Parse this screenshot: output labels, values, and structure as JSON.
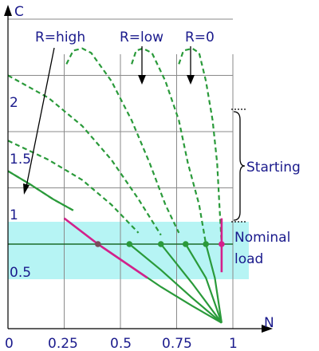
{
  "chart_data": {
    "type": "line",
    "xlabel": "N",
    "ylabel": "C",
    "x_ticks": [
      "0",
      "0.25",
      "0.5",
      "0.75",
      "1"
    ],
    "y_ticks": [
      "0.5",
      "1",
      "1.5",
      "2"
    ],
    "xlim": [
      0,
      1.0
    ],
    "ylim": [
      -0.25,
      2.5
    ],
    "grid": true,
    "annotations": {
      "r_high": "R=high",
      "r_low": "R=low",
      "r_zero": "R=0",
      "starting": "Starting",
      "nominal_load_1": "Nominal",
      "nominal_load_2": "load"
    },
    "nominal_band": [
      0.25,
      0.75
    ],
    "nominal_load_level": 0.5,
    "starting_range": [
      1.0,
      2.0
    ],
    "operating_points_N": [
      0.4,
      0.54,
      0.68,
      0.79,
      0.88,
      0.95
    ],
    "series": [
      {
        "upper": [
          [
            0.0,
            1.42
          ],
          [
            0.18,
            1.25
          ],
          [
            0.33,
            1.07
          ],
          [
            0.46,
            0.85
          ],
          [
            0.58,
            0.6
          ],
          [
            0.68,
            0.37
          ],
          [
            0.77,
            0.12
          ],
          [
            0.85,
            -0.1
          ],
          [
            0.95,
            -0.2
          ]
        ],
        "lower": [
          [
            0.25,
            0.73
          ],
          [
            0.4,
            0.5
          ],
          [
            0.54,
            0.31
          ],
          [
            0.68,
            0.12
          ],
          [
            0.82,
            -0.05
          ],
          [
            0.95,
            -0.2
          ]
        ]
      },
      {
        "upper": [
          [
            0.0,
            2.0
          ],
          [
            0.18,
            1.8
          ],
          [
            0.33,
            1.55
          ],
          [
            0.46,
            1.25
          ],
          [
            0.58,
            0.9
          ],
          [
            0.68,
            0.58
          ],
          [
            0.77,
            0.27
          ],
          [
            0.85,
            0.02
          ],
          [
            0.95,
            -0.2
          ]
        ],
        "lower": [
          [
            0.54,
            0.5
          ],
          [
            0.68,
            0.27
          ],
          [
            0.82,
            0.02
          ],
          [
            0.95,
            -0.2
          ]
        ]
      },
      {
        "upper": [
          [
            0.0,
            1.15
          ],
          [
            0.1,
            1.03
          ],
          [
            0.2,
            0.9
          ],
          [
            0.29,
            0.8
          ]
        ],
        "lower": [
          [
            0.0,
            1.15
          ],
          [
            0.1,
            1.03
          ],
          [
            0.2,
            0.9
          ],
          [
            0.29,
            0.8
          ]
        ]
      },
      {
        "upper": [
          [
            0.26,
            2.1
          ],
          [
            0.29,
            2.22
          ],
          [
            0.33,
            2.24
          ],
          [
            0.37,
            2.2
          ],
          [
            0.46,
            1.95
          ],
          [
            0.55,
            1.6
          ],
          [
            0.63,
            1.22
          ],
          [
            0.7,
            0.85
          ],
          [
            0.76,
            0.6
          ],
          [
            0.82,
            0.3
          ],
          [
            0.88,
            0.05
          ],
          [
            0.95,
            -0.2
          ]
        ],
        "lower": [
          [
            0.68,
            0.5
          ],
          [
            0.82,
            0.15
          ],
          [
            0.95,
            -0.2
          ]
        ]
      },
      {
        "upper": [
          [
            0.55,
            2.1
          ],
          [
            0.57,
            2.22
          ],
          [
            0.6,
            2.24
          ],
          [
            0.64,
            2.2
          ],
          [
            0.7,
            1.95
          ],
          [
            0.76,
            1.6
          ],
          [
            0.8,
            1.22
          ],
          [
            0.85,
            0.85
          ],
          [
            0.88,
            0.5
          ],
          [
            0.91,
            0.2
          ],
          [
            0.95,
            -0.2
          ]
        ],
        "lower": [
          [
            0.79,
            0.5
          ],
          [
            0.88,
            0.2
          ],
          [
            0.95,
            -0.2
          ]
        ]
      },
      {
        "upper": [
          [
            0.76,
            2.1
          ],
          [
            0.78,
            2.22
          ],
          [
            0.82,
            2.24
          ],
          [
            0.85,
            2.2
          ],
          [
            0.88,
            1.95
          ],
          [
            0.91,
            1.6
          ],
          [
            0.93,
            1.22
          ],
          [
            0.94,
            0.85
          ],
          [
            0.95,
            0.5
          ],
          [
            0.95,
            -0.2
          ]
        ],
        "lower": [
          [
            0.88,
            0.5
          ],
          [
            0.92,
            0.2
          ],
          [
            0.95,
            -0.2
          ]
        ]
      }
    ]
  }
}
